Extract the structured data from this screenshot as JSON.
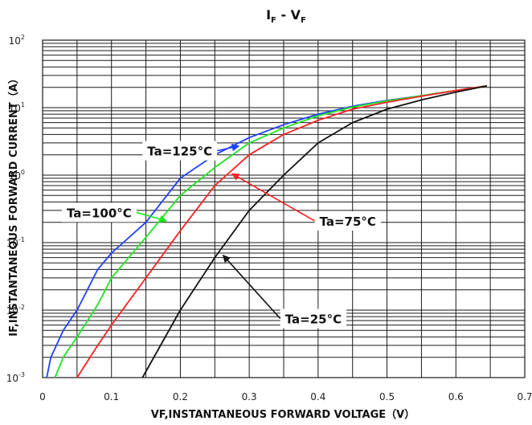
{
  "chart_data": {
    "type": "line",
    "title": "I",
    "title_sub_1": "F",
    "title_sep": " - V",
    "title_sub_2": "F",
    "xlabel": "VF,INSTANTANEOUS FORWARD VOLTAGE（V）",
    "ylabel": "IF,INSTANTANEOUS FORWARD CURRENT（A）",
    "x_scale": "linear",
    "y_scale": "log",
    "xlim": [
      0,
      0.7
    ],
    "ylim": [
      0.001,
      100
    ],
    "grid": true,
    "x_ticks": [
      "0",
      "0.1",
      "0.2",
      "0.3",
      "0.4",
      "0.5",
      "0.6",
      "0.7"
    ],
    "y_ticks": [
      {
        "base": "10",
        "exp": "-3"
      },
      {
        "base": "10",
        "exp": "-2"
      },
      {
        "base": "10",
        "exp": "-1"
      },
      {
        "base": "10",
        "exp": "0"
      },
      {
        "base": "10",
        "exp": "1"
      },
      {
        "base": "10",
        "exp": "2"
      }
    ],
    "series": [
      {
        "name": "Ta=125°C",
        "color": "#1f3fff",
        "points": [
          [
            0.006,
            0.001
          ],
          [
            0.012,
            0.002
          ],
          [
            0.03,
            0.005
          ],
          [
            0.05,
            0.01
          ],
          [
            0.08,
            0.04
          ],
          [
            0.1,
            0.07
          ],
          [
            0.15,
            0.2
          ],
          [
            0.2,
            0.9
          ],
          [
            0.25,
            2.0
          ],
          [
            0.3,
            3.6
          ],
          [
            0.35,
            5.6
          ],
          [
            0.4,
            8.0
          ],
          [
            0.45,
            10.5
          ],
          [
            0.5,
            12.8
          ],
          [
            0.55,
            15.0
          ],
          [
            0.6,
            18.0
          ],
          [
            0.645,
            21.0
          ]
        ],
        "label_anchor": [
          0.285,
          2.7
        ]
      },
      {
        "name": "Ta=100°C",
        "color": "#1fe61f",
        "points": [
          [
            0.018,
            0.001
          ],
          [
            0.03,
            0.002
          ],
          [
            0.05,
            0.004
          ],
          [
            0.08,
            0.012
          ],
          [
            0.1,
            0.03
          ],
          [
            0.15,
            0.12
          ],
          [
            0.2,
            0.5
          ],
          [
            0.25,
            1.3
          ],
          [
            0.3,
            3.0
          ],
          [
            0.35,
            5.0
          ],
          [
            0.4,
            7.6
          ],
          [
            0.45,
            10.2
          ],
          [
            0.5,
            12.6
          ],
          [
            0.55,
            15.0
          ],
          [
            0.6,
            18.0
          ],
          [
            0.645,
            21.0
          ]
        ],
        "label_anchor": [
          0.18,
          0.21
        ]
      },
      {
        "name": "Ta=75°C",
        "color": "#ff1f1f",
        "points": [
          [
            0.05,
            0.001
          ],
          [
            0.08,
            0.003
          ],
          [
            0.1,
            0.006
          ],
          [
            0.15,
            0.03
          ],
          [
            0.2,
            0.15
          ],
          [
            0.25,
            0.7
          ],
          [
            0.3,
            2.0
          ],
          [
            0.35,
            4.0
          ],
          [
            0.4,
            6.5
          ],
          [
            0.45,
            9.5
          ],
          [
            0.5,
            12.0
          ],
          [
            0.55,
            14.8
          ],
          [
            0.6,
            18.0
          ],
          [
            0.645,
            21.0
          ]
        ],
        "label_anchor": [
          0.275,
          1.05
        ]
      },
      {
        "name": "Ta=25°C",
        "color": "#111111",
        "points": [
          [
            0.145,
            0.001
          ],
          [
            0.2,
            0.01
          ],
          [
            0.25,
            0.06
          ],
          [
            0.3,
            0.3
          ],
          [
            0.35,
            1.0
          ],
          [
            0.4,
            3.0
          ],
          [
            0.45,
            6.0
          ],
          [
            0.5,
            9.5
          ],
          [
            0.55,
            13.0
          ],
          [
            0.6,
            17.0
          ],
          [
            0.645,
            21.0
          ]
        ],
        "label_anchor": [
          0.262,
          0.065
        ]
      }
    ],
    "annotations": [
      {
        "series": 0,
        "text": "Ta=125°C",
        "at": [
          0.145,
          2.3
        ],
        "anchor": "start"
      },
      {
        "series": 1,
        "text": "Ta=100°C",
        "at": [
          0.028,
          0.28
        ],
        "anchor": "start"
      },
      {
        "series": 2,
        "text": "Ta=75°C",
        "at": [
          0.395,
          0.21
        ],
        "anchor": "start"
      },
      {
        "series": 3,
        "text": "Ta=25°C",
        "at": [
          0.345,
          0.0075
        ],
        "anchor": "start"
      }
    ]
  }
}
